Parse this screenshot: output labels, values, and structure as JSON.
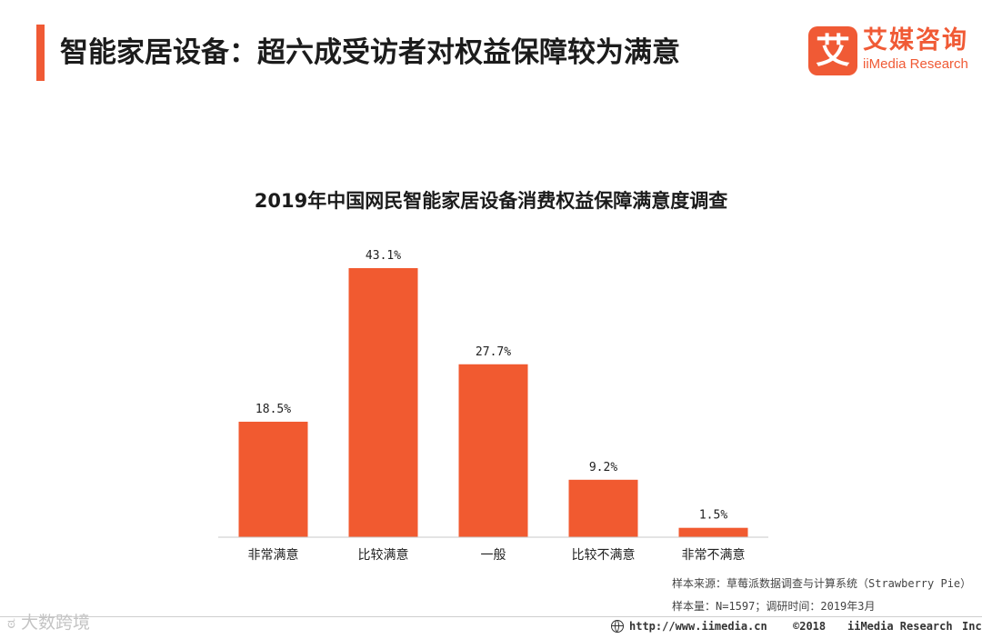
{
  "header": {
    "title": "智能家居设备：超六成受访者对权益保障较为满意",
    "accent_color": "#f05a35"
  },
  "logo": {
    "mark": "艾",
    "name_cn": "艾媒咨询",
    "name_en": "iiMedia Research"
  },
  "chart_data": {
    "type": "bar",
    "title": "2019年中国网民智能家居设备消费权益保障满意度调查",
    "categories": [
      "非常满意",
      "比较满意",
      "一般",
      "比较不满意",
      "非常不满意"
    ],
    "values": [
      18.5,
      43.1,
      27.7,
      9.2,
      1.5
    ],
    "value_labels": [
      "18.5%",
      "43.1%",
      "27.7%",
      "9.2%",
      "1.5%"
    ],
    "unit": "%",
    "ylim": [
      0,
      45
    ],
    "grid": false,
    "legend": "none",
    "bar_color": "#f15a30"
  },
  "notes": {
    "source": "样本来源：草莓派数据调查与计算系统（Strawberry Pie）",
    "sample": "样本量：N=1597；调研时间：2019年3月"
  },
  "footer": {
    "url": "http://www.iimedia.cn",
    "copyright": "©2018",
    "company": "iiMedia Research",
    "inc": "Inc"
  },
  "watermark": {
    "icon": "weibo-icon",
    "text": "大数跨境"
  }
}
